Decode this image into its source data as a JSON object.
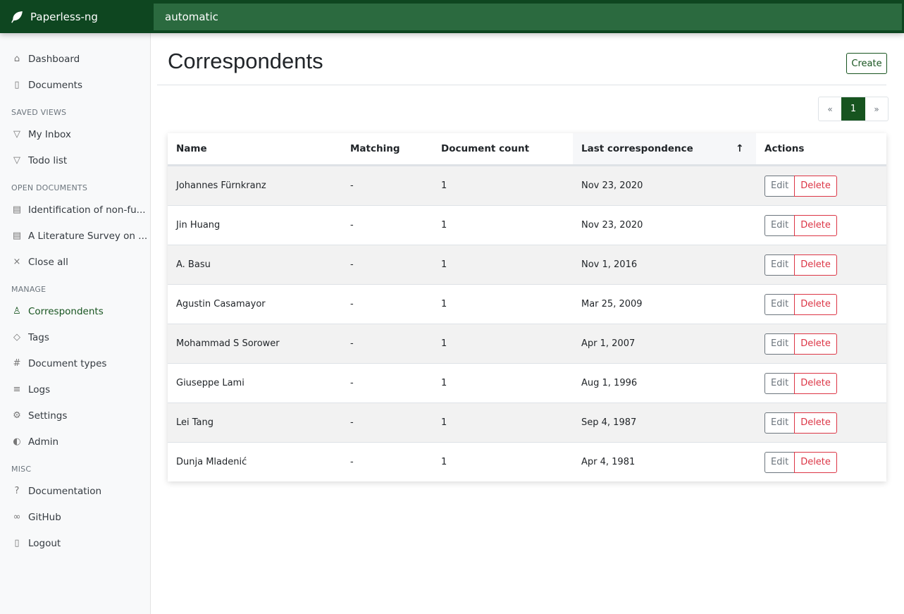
{
  "app": {
    "name": "Paperless-ng",
    "search_value": "automatic"
  },
  "sidebar": {
    "items": [
      {
        "label": "Dashboard",
        "icon": "house-icon"
      },
      {
        "label": "Documents",
        "icon": "files-icon"
      }
    ],
    "saved_views_title": "Saved views",
    "saved_views": [
      {
        "label": "My Inbox",
        "icon": "funnel-icon"
      },
      {
        "label": "Todo list",
        "icon": "funnel-icon"
      }
    ],
    "open_documents_title": "Open documents",
    "open_documents": [
      {
        "label": "Identification of non-fu...",
        "icon": "file-text-icon"
      },
      {
        "label": "A Literature Survey on ...",
        "icon": "file-text-icon"
      },
      {
        "label": "Close all",
        "icon": "x-icon"
      }
    ],
    "manage_title": "Manage",
    "manage": [
      {
        "label": "Correspondents",
        "icon": "person-icon"
      },
      {
        "label": "Tags",
        "icon": "tags-icon"
      },
      {
        "label": "Document types",
        "icon": "hash-icon"
      },
      {
        "label": "Logs",
        "icon": "text-left-icon"
      },
      {
        "label": "Settings",
        "icon": "gear-icon"
      },
      {
        "label": "Admin",
        "icon": "toggles-icon"
      }
    ],
    "misc_title": "Misc",
    "misc": [
      {
        "label": "Documentation",
        "icon": "question-circle-icon"
      },
      {
        "label": "GitHub",
        "icon": "link-icon"
      },
      {
        "label": "Logout",
        "icon": "door-icon"
      }
    ]
  },
  "page": {
    "title": "Correspondents",
    "create_label": "Create"
  },
  "pagination": {
    "prev": "«",
    "current": "1",
    "next": "»"
  },
  "table": {
    "headers": [
      "Name",
      "Matching",
      "Document count",
      "Last correspondence",
      "Actions"
    ],
    "sort_indicator": "↑",
    "edit_label": "Edit",
    "delete_label": "Delete",
    "rows": [
      [
        "Johannes Fürnkranz",
        "-",
        "1",
        "Nov 23, 2020"
      ],
      [
        "Jin Huang",
        "-",
        "1",
        "Nov 23, 2020"
      ],
      [
        "A. Basu",
        "-",
        "1",
        "Nov 1, 2016"
      ],
      [
        "Agustin Casamayor",
        "-",
        "1",
        "Mar 25, 2009"
      ],
      [
        "Mohammad S Sorower",
        "-",
        "1",
        "Apr 1, 2007"
      ],
      [
        "Giuseppe Lami",
        "-",
        "1",
        "Aug 1, 1996"
      ],
      [
        "Lei Tang",
        "-",
        "1",
        "Sep 4, 1987"
      ],
      [
        "Dunja Mladenić",
        "-",
        "1",
        "Apr 4, 1981"
      ]
    ]
  },
  "colors": {
    "brand": "#0e4620",
    "accent": "#17541f",
    "danger": "#dc3545"
  }
}
